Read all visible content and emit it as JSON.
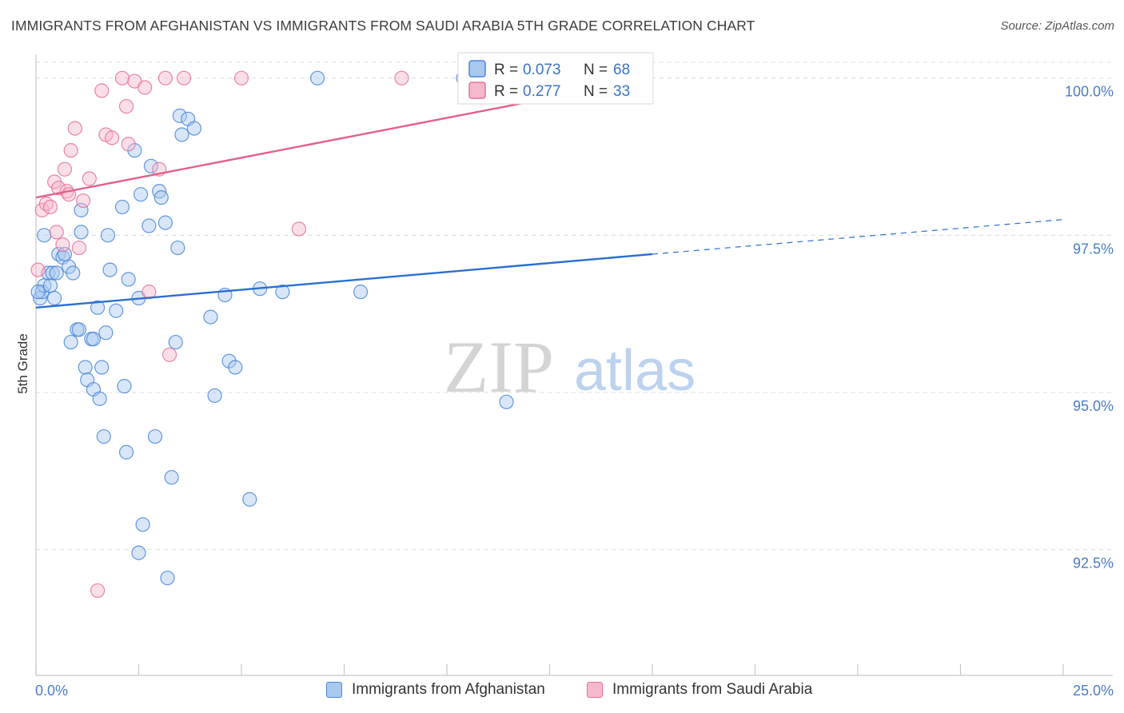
{
  "title": "IMMIGRANTS FROM AFGHANISTAN VS IMMIGRANTS FROM SAUDI ARABIA 5TH GRADE CORRELATION CHART",
  "source": "Source: ZipAtlas.com",
  "watermark": {
    "zip": "ZIP",
    "atlas": "atlas"
  },
  "colors": {
    "blue": "#4a86d8",
    "blue_fill": "#a9c8f0",
    "blue_line": "#2a6fd0",
    "pink": "#e6709a",
    "pink_fill": "#f6b8cc",
    "pink_line": "#e0608c",
    "grid": "#dcdcdc",
    "tick_text": "#4a7cc9"
  },
  "chart_data": {
    "type": "scatter",
    "xlabel": "",
    "ylabel": "5th Grade",
    "xlim": [
      0,
      25
    ],
    "ylim": [
      90.5,
      100.25
    ],
    "x_tick_labels": {
      "min": "0.0%",
      "max": "25.0%"
    },
    "y_ticks": [
      {
        "value": 100.0,
        "label": "100.0%"
      },
      {
        "value": 97.5,
        "label": "97.5%"
      },
      {
        "value": 95.0,
        "label": "95.0%"
      },
      {
        "value": 92.5,
        "label": "92.5%"
      }
    ],
    "legend": [
      {
        "series": "Immigrants from Afghanistan",
        "r_label": "R =",
        "r": "0.073",
        "n_label": "N =",
        "n": "68"
      },
      {
        "series": "Immigrants from Saudi Arabia",
        "r_label": "R =",
        "r": "0.277",
        "n_label": "N =",
        "n": "33"
      }
    ],
    "series": [
      {
        "name": "Immigrants from Afghanistan",
        "color": "blue",
        "trend": {
          "x0": 0,
          "y0": 96.35,
          "x1": 15,
          "y1": 97.2,
          "dash_to_x": 25,
          "dash_to_y": 97.75
        },
        "points": [
          [
            0.1,
            96.5
          ],
          [
            0.15,
            96.6
          ],
          [
            0.2,
            96.7
          ],
          [
            0.2,
            97.5
          ],
          [
            0.3,
            96.9
          ],
          [
            0.35,
            96.7
          ],
          [
            0.4,
            96.9
          ],
          [
            0.45,
            96.5
          ],
          [
            0.5,
            96.9
          ],
          [
            0.55,
            97.2
          ],
          [
            0.65,
            97.15
          ],
          [
            0.7,
            97.2
          ],
          [
            0.8,
            97.0
          ],
          [
            0.9,
            96.9
          ],
          [
            1.1,
            97.9
          ],
          [
            1.1,
            97.55
          ],
          [
            1.0,
            96.0
          ],
          [
            1.05,
            96.0
          ],
          [
            0.85,
            95.8
          ],
          [
            1.2,
            95.4
          ],
          [
            1.25,
            95.2
          ],
          [
            1.35,
            95.85
          ],
          [
            1.4,
            95.85
          ],
          [
            1.4,
            95.05
          ],
          [
            1.5,
            96.35
          ],
          [
            1.55,
            94.9
          ],
          [
            1.6,
            95.4
          ],
          [
            1.65,
            94.3
          ],
          [
            1.7,
            95.95
          ],
          [
            1.75,
            97.5
          ],
          [
            1.8,
            96.95
          ],
          [
            1.95,
            96.3
          ],
          [
            2.1,
            97.95
          ],
          [
            2.15,
            95.1
          ],
          [
            2.2,
            94.05
          ],
          [
            2.25,
            96.8
          ],
          [
            2.4,
            98.85
          ],
          [
            2.5,
            96.5
          ],
          [
            2.55,
            98.15
          ],
          [
            2.6,
            92.9
          ],
          [
            2.75,
            97.65
          ],
          [
            2.8,
            98.6
          ],
          [
            2.9,
            94.3
          ],
          [
            3.0,
            98.2
          ],
          [
            3.05,
            98.1
          ],
          [
            3.15,
            97.7
          ],
          [
            3.2,
            92.05
          ],
          [
            3.3,
            93.65
          ],
          [
            3.4,
            95.8
          ],
          [
            3.45,
            97.3
          ],
          [
            3.5,
            99.4
          ],
          [
            3.55,
            99.1
          ],
          [
            3.7,
            99.35
          ],
          [
            3.85,
            99.2
          ],
          [
            4.25,
            96.2
          ],
          [
            4.35,
            94.95
          ],
          [
            4.6,
            96.55
          ],
          [
            4.7,
            95.5
          ],
          [
            4.85,
            95.4
          ],
          [
            5.2,
            93.3
          ],
          [
            5.45,
            96.65
          ],
          [
            6.0,
            96.6
          ],
          [
            6.85,
            100.0
          ],
          [
            7.9,
            96.6
          ],
          [
            10.4,
            100.0
          ],
          [
            11.45,
            94.85
          ],
          [
            2.5,
            92.45
          ],
          [
            0.05,
            96.6
          ]
        ]
      },
      {
        "name": "Immigrants from Saudi Arabia",
        "color": "pink",
        "trend": {
          "x0": 0,
          "y0": 98.1,
          "x1": 15,
          "y1": 100.0
        },
        "points": [
          [
            0.05,
            96.95
          ],
          [
            0.15,
            97.9
          ],
          [
            0.25,
            98.0
          ],
          [
            0.35,
            97.95
          ],
          [
            0.45,
            98.35
          ],
          [
            0.5,
            97.55
          ],
          [
            0.55,
            98.25
          ],
          [
            0.65,
            97.35
          ],
          [
            0.7,
            98.55
          ],
          [
            0.75,
            98.2
          ],
          [
            0.8,
            98.15
          ],
          [
            0.85,
            98.85
          ],
          [
            0.95,
            99.2
          ],
          [
            1.05,
            97.3
          ],
          [
            1.15,
            98.05
          ],
          [
            1.3,
            98.4
          ],
          [
            1.5,
            91.85
          ],
          [
            1.6,
            99.8
          ],
          [
            1.7,
            99.1
          ],
          [
            1.85,
            99.05
          ],
          [
            2.1,
            100.0
          ],
          [
            2.2,
            99.55
          ],
          [
            2.25,
            98.95
          ],
          [
            2.4,
            99.95
          ],
          [
            2.65,
            99.85
          ],
          [
            2.75,
            96.6
          ],
          [
            3.0,
            98.55
          ],
          [
            3.15,
            100.0
          ],
          [
            3.25,
            95.6
          ],
          [
            3.6,
            100.0
          ],
          [
            6.4,
            97.6
          ],
          [
            5.0,
            100.0
          ],
          [
            8.9,
            100.0
          ]
        ]
      }
    ]
  }
}
